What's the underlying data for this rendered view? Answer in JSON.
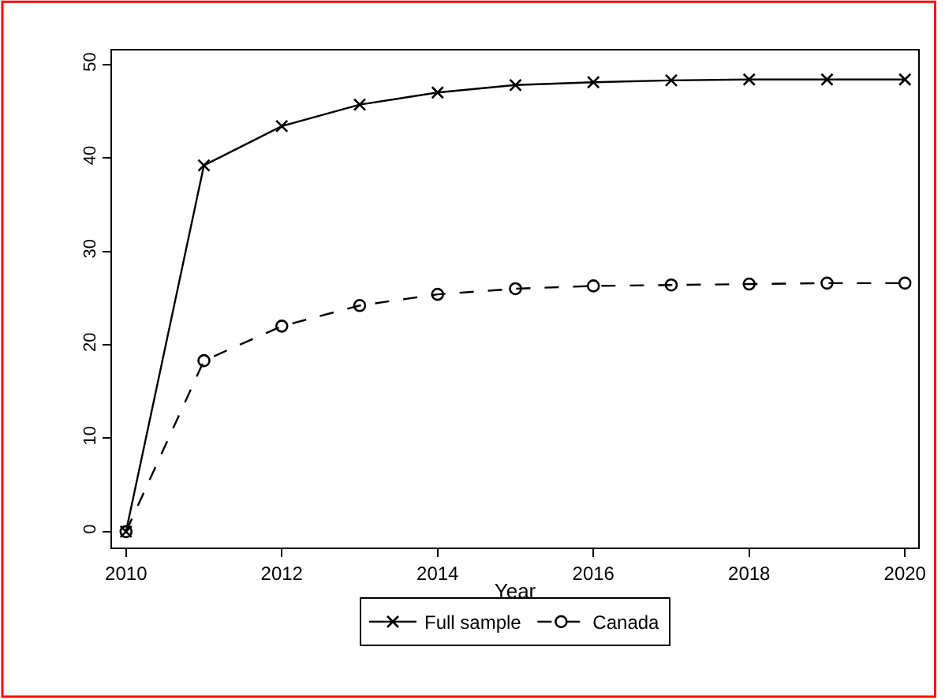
{
  "chart_data": {
    "type": "line",
    "xlabel": "Year",
    "x": [
      2010,
      2011,
      2012,
      2013,
      2014,
      2015,
      2016,
      2017,
      2018,
      2019,
      2020
    ],
    "series": [
      {
        "name": "Full sample",
        "color": "#000000",
        "marker": "cross",
        "line_style": "solid",
        "values": [
          0,
          39.2,
          43.4,
          45.7,
          47.0,
          47.8,
          48.1,
          48.3,
          48.4,
          48.4,
          48.4
        ]
      },
      {
        "name": "Canada",
        "color": "#000000",
        "marker": "circle",
        "line_style": "dashed",
        "values": [
          0,
          18.3,
          22.0,
          24.2,
          25.4,
          26.0,
          26.3,
          26.4,
          26.5,
          26.6,
          26.6
        ]
      }
    ],
    "xlim": [
      2009.82,
      2020.17
    ],
    "xticks": [
      2010,
      2012,
      2014,
      2016,
      2018,
      2020
    ],
    "ylim": [
      -1.7,
      51.5
    ],
    "yticks": [
      0,
      10,
      20,
      30,
      40,
      50
    ],
    "legend": "bottom"
  }
}
